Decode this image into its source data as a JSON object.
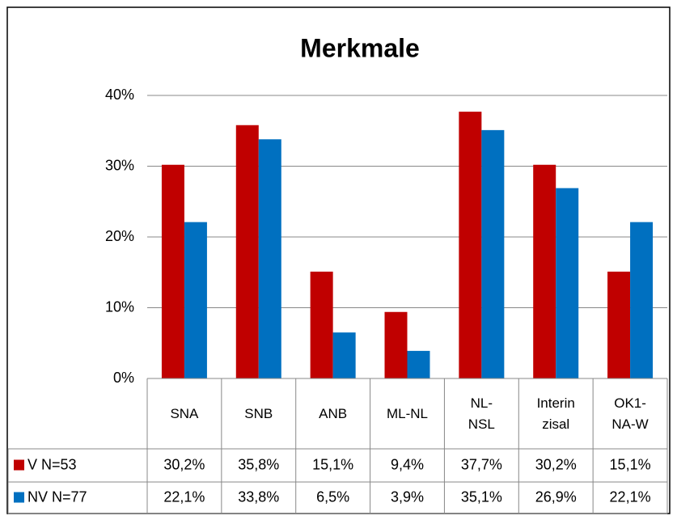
{
  "chart_data": {
    "type": "bar",
    "title": "Merkmale",
    "categories": [
      "SNA",
      "SNB",
      "ANB",
      "ML-NL",
      "NL-NSL",
      "Interinzisal",
      "OK1-NA-W"
    ],
    "series": [
      {
        "name": "V N=53",
        "color": "#c00000",
        "values": [
          30.2,
          35.8,
          15.1,
          9.4,
          37.7,
          30.2,
          15.1
        ],
        "value_labels": [
          "30,2%",
          "35,8%",
          "15,1%",
          "9,4%",
          "37,7%",
          "30,2%",
          "15,1%"
        ]
      },
      {
        "name": "NV N=77",
        "color": "#0070c0",
        "values": [
          22.1,
          33.8,
          6.5,
          3.9,
          35.1,
          26.9,
          22.1
        ],
        "value_labels": [
          "22,1%",
          "33,8%",
          "6,5%",
          "3,9%",
          "35,1%",
          "26,9%",
          "22,1%"
        ]
      }
    ],
    "ylim": [
      0,
      40
    ],
    "yticks": [
      {
        "value": 0,
        "label": "0%"
      },
      {
        "value": 10,
        "label": "10%"
      },
      {
        "value": 20,
        "label": "20%"
      },
      {
        "value": 30,
        "label": "30%"
      },
      {
        "value": 40,
        "label": "40%"
      }
    ],
    "grid": true
  }
}
